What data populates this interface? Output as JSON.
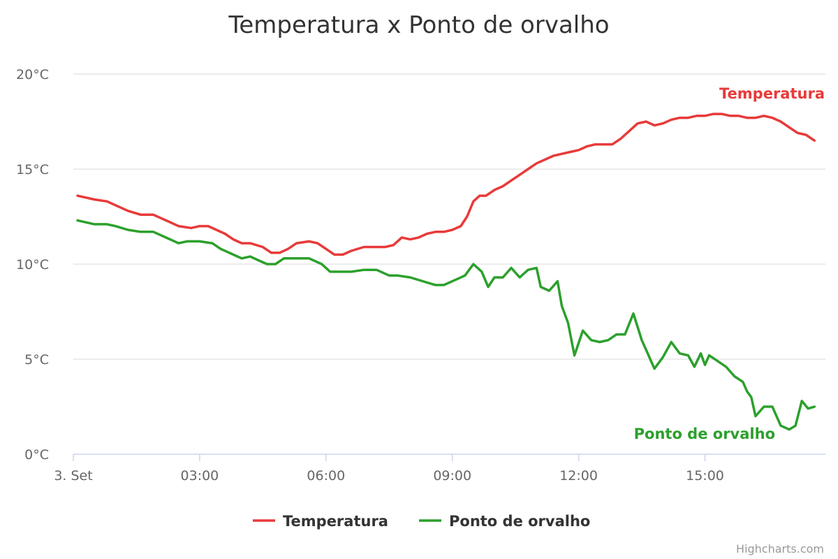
{
  "chart_data": {
    "type": "line",
    "title": "Temperatura x Ponto de orvalho",
    "ylim": [
      0,
      20
    ],
    "y_ticks": [
      {
        "value": 0,
        "label": "0°C"
      },
      {
        "value": 5,
        "label": "5°C"
      },
      {
        "value": 10,
        "label": "10°C"
      },
      {
        "value": 15,
        "label": "15°C"
      },
      {
        "value": 20,
        "label": "20°C"
      }
    ],
    "x_ticks": [
      {
        "hour": 0,
        "label": "3. Set"
      },
      {
        "hour": 3,
        "label": "03:00"
      },
      {
        "hour": 6,
        "label": "06:00"
      },
      {
        "hour": 9,
        "label": "09:00"
      },
      {
        "hour": 12,
        "label": "12:00"
      },
      {
        "hour": 15,
        "label": "15:00"
      }
    ],
    "xlim_hours": [
      0,
      17.7
    ],
    "grid": true,
    "legend_position": "bottom-center",
    "series": [
      {
        "name": "Temperatura",
        "color": "#e83a3a",
        "points": [
          [
            0.1,
            13.6
          ],
          [
            0.3,
            13.5
          ],
          [
            0.5,
            13.4
          ],
          [
            0.8,
            13.3
          ],
          [
            1.0,
            13.1
          ],
          [
            1.3,
            12.8
          ],
          [
            1.6,
            12.6
          ],
          [
            1.9,
            12.6
          ],
          [
            2.1,
            12.4
          ],
          [
            2.2,
            12.3
          ],
          [
            2.5,
            12.0
          ],
          [
            2.8,
            11.9
          ],
          [
            3.0,
            12.0
          ],
          [
            3.2,
            12.0
          ],
          [
            3.4,
            11.8
          ],
          [
            3.6,
            11.6
          ],
          [
            3.8,
            11.3
          ],
          [
            4.0,
            11.1
          ],
          [
            4.2,
            11.1
          ],
          [
            4.5,
            10.9
          ],
          [
            4.7,
            10.6
          ],
          [
            4.9,
            10.6
          ],
          [
            5.1,
            10.8
          ],
          [
            5.3,
            11.1
          ],
          [
            5.6,
            11.2
          ],
          [
            5.8,
            11.1
          ],
          [
            6.0,
            10.8
          ],
          [
            6.2,
            10.5
          ],
          [
            6.4,
            10.5
          ],
          [
            6.6,
            10.7
          ],
          [
            6.9,
            10.9
          ],
          [
            7.2,
            10.9
          ],
          [
            7.4,
            10.9
          ],
          [
            7.6,
            11.0
          ],
          [
            7.8,
            11.4
          ],
          [
            8.0,
            11.3
          ],
          [
            8.2,
            11.4
          ],
          [
            8.4,
            11.6
          ],
          [
            8.6,
            11.7
          ],
          [
            8.8,
            11.7
          ],
          [
            9.0,
            11.8
          ],
          [
            9.2,
            12.0
          ],
          [
            9.35,
            12.5
          ],
          [
            9.5,
            13.3
          ],
          [
            9.65,
            13.6
          ],
          [
            9.8,
            13.6
          ],
          [
            10.0,
            13.9
          ],
          [
            10.2,
            14.1
          ],
          [
            10.4,
            14.4
          ],
          [
            10.6,
            14.7
          ],
          [
            10.8,
            15.0
          ],
          [
            11.0,
            15.3
          ],
          [
            11.2,
            15.5
          ],
          [
            11.4,
            15.7
          ],
          [
            11.6,
            15.8
          ],
          [
            11.8,
            15.9
          ],
          [
            12.0,
            16.0
          ],
          [
            12.2,
            16.2
          ],
          [
            12.4,
            16.3
          ],
          [
            12.6,
            16.3
          ],
          [
            12.8,
            16.3
          ],
          [
            13.0,
            16.6
          ],
          [
            13.2,
            17.0
          ],
          [
            13.4,
            17.4
          ],
          [
            13.6,
            17.5
          ],
          [
            13.8,
            17.3
          ],
          [
            14.0,
            17.4
          ],
          [
            14.2,
            17.6
          ],
          [
            14.4,
            17.7
          ],
          [
            14.6,
            17.7
          ],
          [
            14.8,
            17.8
          ],
          [
            15.0,
            17.8
          ],
          [
            15.2,
            17.9
          ],
          [
            15.4,
            17.9
          ],
          [
            15.6,
            17.8
          ],
          [
            15.8,
            17.8
          ],
          [
            16.0,
            17.7
          ],
          [
            16.2,
            17.7
          ],
          [
            16.4,
            17.8
          ],
          [
            16.6,
            17.7
          ],
          [
            16.8,
            17.5
          ],
          [
            17.0,
            17.2
          ],
          [
            17.2,
            16.9
          ],
          [
            17.4,
            16.8
          ],
          [
            17.6,
            16.5
          ]
        ]
      },
      {
        "name": "Ponto de orvalho",
        "color": "#2ca02c",
        "points": [
          [
            0.1,
            12.3
          ],
          [
            0.3,
            12.2
          ],
          [
            0.5,
            12.1
          ],
          [
            0.8,
            12.1
          ],
          [
            1.0,
            12.0
          ],
          [
            1.3,
            11.8
          ],
          [
            1.6,
            11.7
          ],
          [
            1.9,
            11.7
          ],
          [
            2.1,
            11.5
          ],
          [
            2.3,
            11.3
          ],
          [
            2.5,
            11.1
          ],
          [
            2.7,
            11.2
          ],
          [
            3.0,
            11.2
          ],
          [
            3.3,
            11.1
          ],
          [
            3.5,
            10.8
          ],
          [
            3.8,
            10.5
          ],
          [
            4.0,
            10.3
          ],
          [
            4.2,
            10.4
          ],
          [
            4.4,
            10.2
          ],
          [
            4.6,
            10.0
          ],
          [
            4.8,
            10.0
          ],
          [
            5.0,
            10.3
          ],
          [
            5.3,
            10.3
          ],
          [
            5.6,
            10.3
          ],
          [
            5.9,
            10.0
          ],
          [
            6.1,
            9.6
          ],
          [
            6.4,
            9.6
          ],
          [
            6.6,
            9.6
          ],
          [
            6.9,
            9.7
          ],
          [
            7.2,
            9.7
          ],
          [
            7.5,
            9.4
          ],
          [
            7.7,
            9.4
          ],
          [
            8.0,
            9.3
          ],
          [
            8.3,
            9.1
          ],
          [
            8.6,
            8.9
          ],
          [
            8.8,
            8.9
          ],
          [
            9.1,
            9.2
          ],
          [
            9.3,
            9.4
          ],
          [
            9.5,
            10.0
          ],
          [
            9.7,
            9.6
          ],
          [
            9.85,
            8.8
          ],
          [
            10.0,
            9.3
          ],
          [
            10.2,
            9.3
          ],
          [
            10.4,
            9.8
          ],
          [
            10.6,
            9.3
          ],
          [
            10.8,
            9.7
          ],
          [
            11.0,
            9.8
          ],
          [
            11.1,
            8.8
          ],
          [
            11.3,
            8.6
          ],
          [
            11.5,
            9.1
          ],
          [
            11.6,
            7.8
          ],
          [
            11.75,
            6.9
          ],
          [
            11.9,
            5.2
          ],
          [
            12.1,
            6.5
          ],
          [
            12.3,
            6.0
          ],
          [
            12.5,
            5.9
          ],
          [
            12.7,
            6.0
          ],
          [
            12.9,
            6.3
          ],
          [
            13.1,
            6.3
          ],
          [
            13.3,
            7.4
          ],
          [
            13.5,
            6.0
          ],
          [
            13.6,
            5.5
          ],
          [
            13.8,
            4.5
          ],
          [
            14.0,
            5.1
          ],
          [
            14.2,
            5.9
          ],
          [
            14.4,
            5.3
          ],
          [
            14.6,
            5.2
          ],
          [
            14.75,
            4.6
          ],
          [
            14.9,
            5.3
          ],
          [
            15.0,
            4.7
          ],
          [
            15.1,
            5.2
          ],
          [
            15.3,
            4.9
          ],
          [
            15.5,
            4.6
          ],
          [
            15.7,
            4.1
          ],
          [
            15.9,
            3.8
          ],
          [
            16.0,
            3.3
          ],
          [
            16.1,
            3.0
          ],
          [
            16.2,
            2.0
          ],
          [
            16.4,
            2.5
          ],
          [
            16.6,
            2.5
          ],
          [
            16.8,
            1.5
          ],
          [
            17.0,
            1.3
          ],
          [
            17.15,
            1.5
          ],
          [
            17.3,
            2.8
          ],
          [
            17.45,
            2.4
          ],
          [
            17.6,
            2.5
          ]
        ]
      }
    ]
  },
  "credits": "Highcharts.com"
}
